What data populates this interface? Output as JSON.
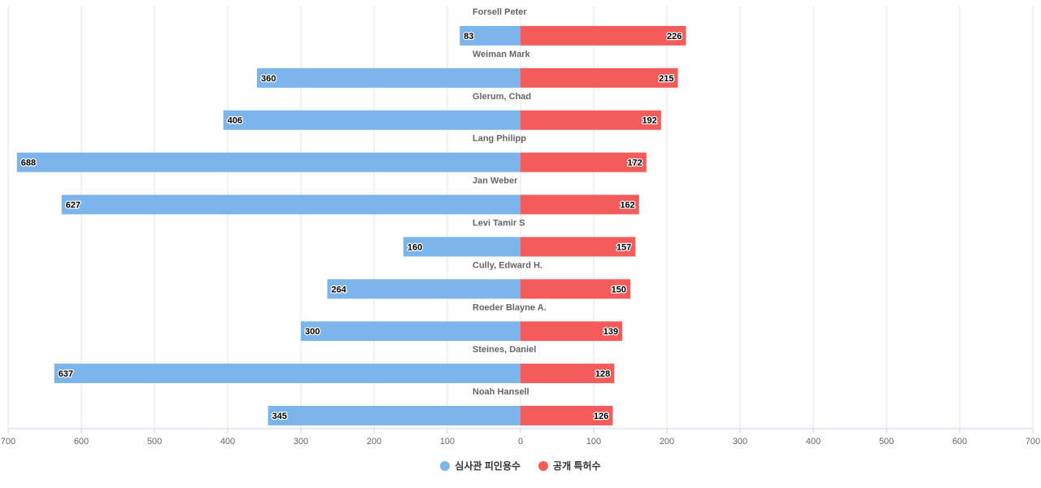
{
  "chart_data": {
    "type": "bar",
    "orientation": "horizontal-diverging",
    "categories": [
      "Forsell Peter",
      "Weiman Mark",
      "Glerum, Chad",
      "Lang Philipp",
      "Jan Weber",
      "Levi Tamir S",
      "Cully, Edward H.",
      "Roeder Blayne A.",
      "Steines, Daniel",
      "Noah Hansell"
    ],
    "series": [
      {
        "name": "심사관 피인용수",
        "color": "#7cb5ec",
        "side": "left",
        "values": [
          83,
          360,
          406,
          688,
          627,
          160,
          264,
          300,
          637,
          345
        ]
      },
      {
        "name": "공개 특허수",
        "color": "#f45b5b",
        "side": "right",
        "values": [
          226,
          215,
          192,
          172,
          162,
          157,
          150,
          139,
          128,
          126
        ]
      }
    ],
    "xlim": [
      -700,
      700
    ],
    "x_ticks": [
      -700,
      -600,
      -500,
      -400,
      -300,
      -200,
      -100,
      0,
      100,
      200,
      300,
      400,
      500,
      600,
      700
    ],
    "x_tick_labels": [
      "700",
      "600",
      "500",
      "400",
      "300",
      "200",
      "100",
      "0",
      "100",
      "200",
      "300",
      "400",
      "500",
      "600",
      "700"
    ],
    "data_labels": true,
    "grid": true,
    "legend_position": "bottom-center"
  }
}
